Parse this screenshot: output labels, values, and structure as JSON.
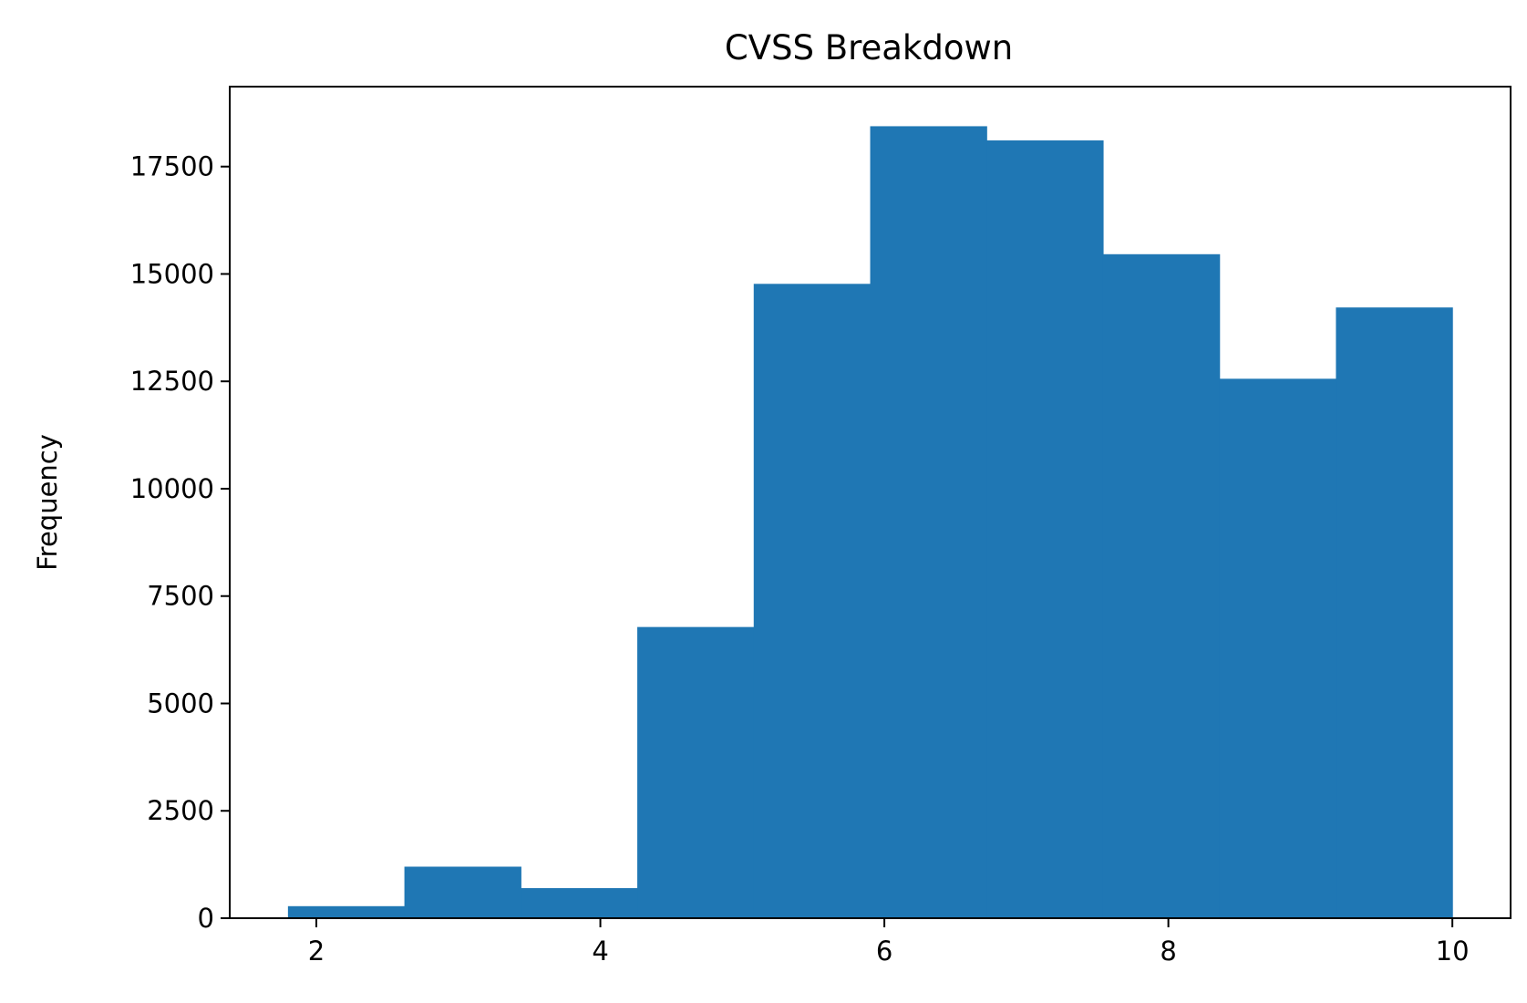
{
  "chart_data": {
    "type": "bar",
    "title": "CVSS Breakdown",
    "xlabel": "",
    "ylabel": "Frequency",
    "bins": [
      {
        "x0": 1.8,
        "x1": 2.62,
        "count": 280
      },
      {
        "x0": 2.62,
        "x1": 3.44,
        "count": 1200
      },
      {
        "x0": 3.44,
        "x1": 4.26,
        "count": 700
      },
      {
        "x0": 4.26,
        "x1": 5.08,
        "count": 6780
      },
      {
        "x0": 5.08,
        "x1": 5.9,
        "count": 14770
      },
      {
        "x0": 5.9,
        "x1": 6.72,
        "count": 18440
      },
      {
        "x0": 6.72,
        "x1": 7.54,
        "count": 18110
      },
      {
        "x0": 7.54,
        "x1": 8.36,
        "count": 15460
      },
      {
        "x0": 8.36,
        "x1": 9.18,
        "count": 12560
      },
      {
        "x0": 9.18,
        "x1": 10.0,
        "count": 14220
      }
    ],
    "xlim": [
      1.39,
      10.41
    ],
    "ylim": [
      0,
      19362
    ],
    "x_ticks": [
      2,
      4,
      6,
      8,
      10
    ],
    "x_tick_labels": [
      "2",
      "4",
      "6",
      "8",
      "10"
    ],
    "y_ticks": [
      0,
      2500,
      5000,
      7500,
      10000,
      12500,
      15000,
      17500
    ],
    "y_tick_labels": [
      "0",
      "2500",
      "5000",
      "7500",
      "10000",
      "12500",
      "15000",
      "17500"
    ],
    "grid": false,
    "legend": "none",
    "bar_color": "#1f77b4"
  }
}
